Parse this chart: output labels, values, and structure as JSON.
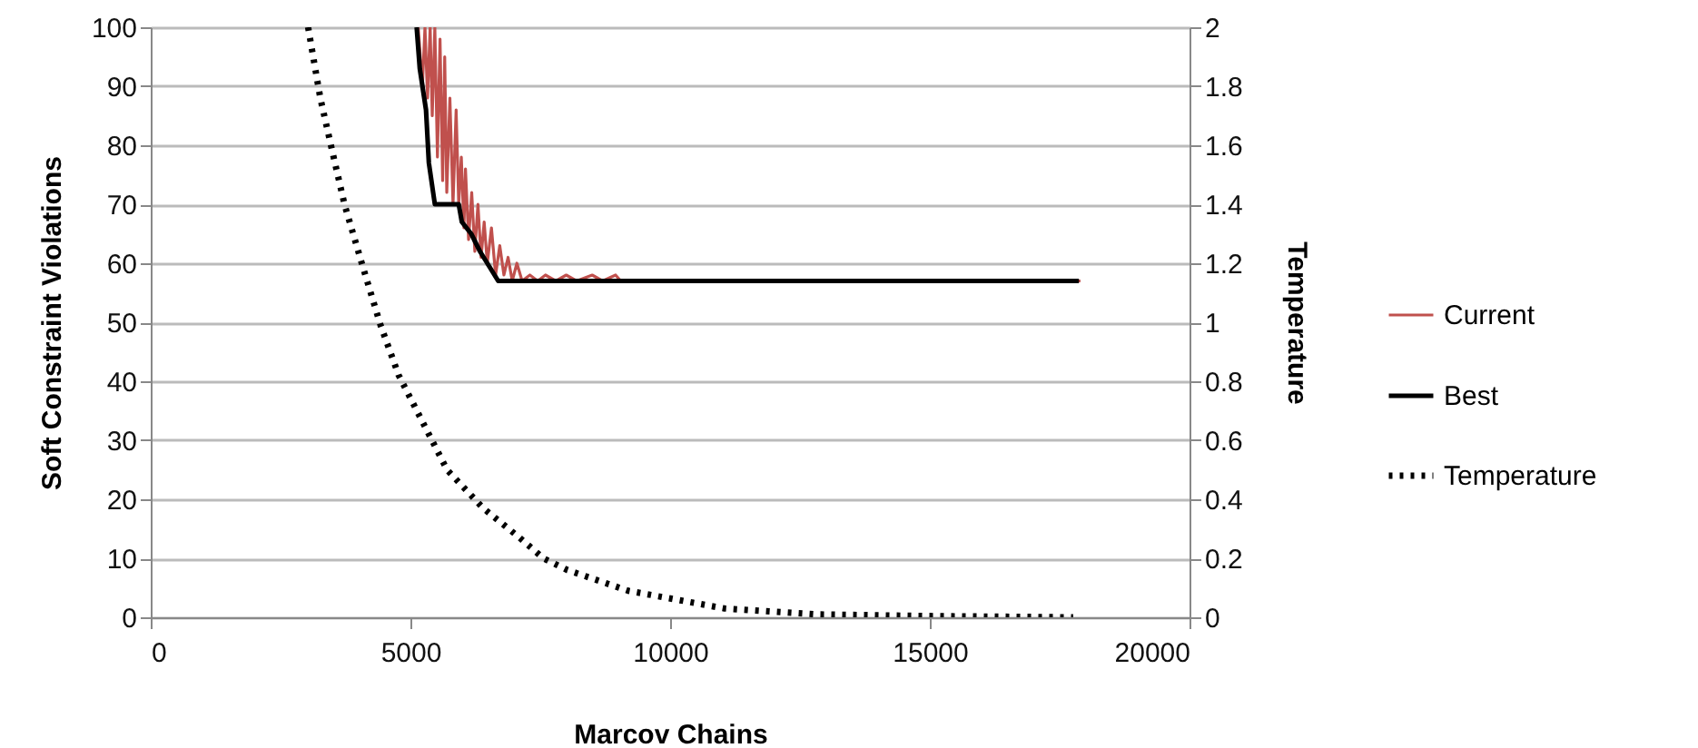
{
  "chart_data": {
    "type": "line",
    "xlabel": "Marcov Chains",
    "ylabel": "Soft Constraint Violations",
    "y2label": "Temperature",
    "xlim": [
      0,
      20000
    ],
    "xticks": [
      0,
      5000,
      10000,
      15000,
      20000
    ],
    "ylim": [
      0,
      100
    ],
    "yticks": [
      0,
      10,
      20,
      30,
      40,
      50,
      60,
      70,
      80,
      90,
      100
    ],
    "y2lim": [
      0,
      2
    ],
    "y2ticks": [
      0,
      0.2,
      0.4,
      0.6,
      0.8,
      1,
      1.2,
      1.4,
      1.6,
      1.8,
      2
    ],
    "grid": "y",
    "legend": "right",
    "marker": "none",
    "series": [
      {
        "name": "Current",
        "color": "#c0504d",
        "line_style": "solid",
        "x": [
          5150,
          5230,
          5280,
          5330,
          5380,
          5420,
          5470,
          5520,
          5570,
          5620,
          5660,
          5700,
          5760,
          5820,
          5880,
          5930,
          5980,
          6030,
          6060,
          6120,
          6180,
          6240,
          6300,
          6360,
          6420,
          6480,
          6560,
          6640,
          6720,
          6800,
          6880,
          6960,
          7050,
          7150,
          7300,
          7450,
          7600,
          7800,
          8000,
          8200,
          8500,
          8700,
          8950,
          9050,
          17900
        ],
        "values": [
          100,
          90,
          100,
          88,
          100,
          85,
          100,
          78,
          98,
          74,
          95,
          72,
          88,
          70,
          86,
          70,
          78,
          66,
          76,
          64,
          72,
          62,
          70,
          61,
          67,
          60,
          66,
          58,
          63,
          58,
          61,
          57,
          60,
          57,
          58,
          57,
          58,
          57,
          58,
          57,
          58,
          57,
          58,
          57,
          57
        ]
      },
      {
        "name": "Best",
        "color": "#000000",
        "line_style": "solid",
        "x": [
          5120,
          5180,
          5300,
          5355,
          5470,
          5930,
          5990,
          6170,
          6340,
          6515,
          6690,
          17870
        ],
        "values": [
          100,
          93,
          86,
          77,
          70,
          70,
          67,
          65,
          62,
          59.5,
          57,
          57
        ]
      },
      {
        "name": "Temperature",
        "color": "#000000",
        "line_style": "dotted",
        "axis": "y2",
        "x": [
          3030,
          3265,
          3495,
          3730,
          4080,
          4425,
          4775,
          5240,
          5705,
          6400,
          7100,
          7560,
          8025,
          9190,
          11045,
          12790,
          15110,
          17760
        ],
        "values": [
          2,
          1.76,
          1.58,
          1.4,
          1.19,
          0.99,
          0.82,
          0.66,
          0.5,
          0.37,
          0.27,
          0.2,
          0.16,
          0.09,
          0.03,
          0.01,
          0.004,
          0
        ]
      }
    ]
  }
}
